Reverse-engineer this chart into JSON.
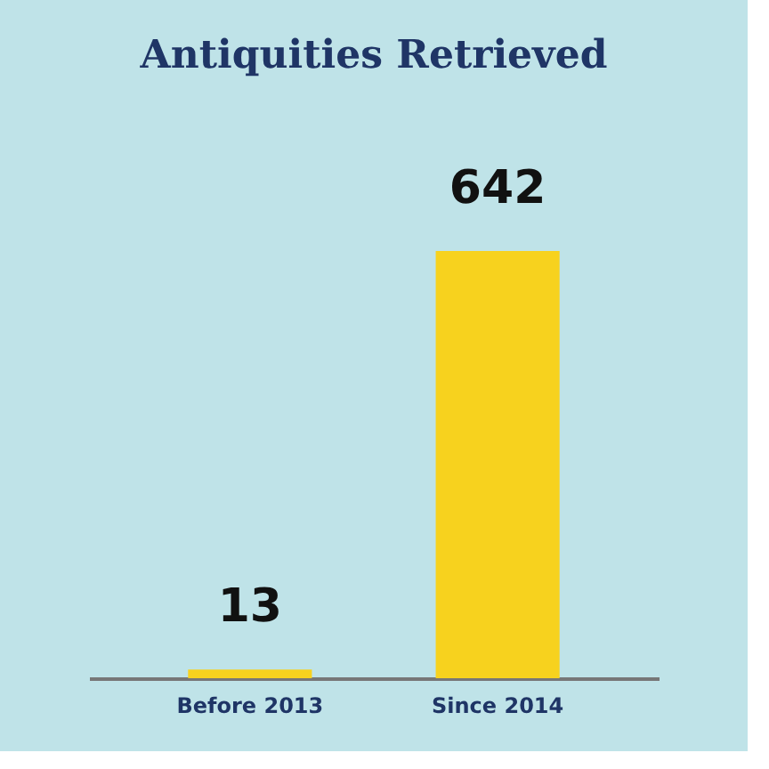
{
  "chart_data": {
    "type": "bar",
    "title": "Antiquities Retrieved",
    "categories": [
      "Before 2013",
      "Since 2014"
    ],
    "values": [
      13,
      642
    ],
    "color": "#f7d21e",
    "data_labels": true
  }
}
